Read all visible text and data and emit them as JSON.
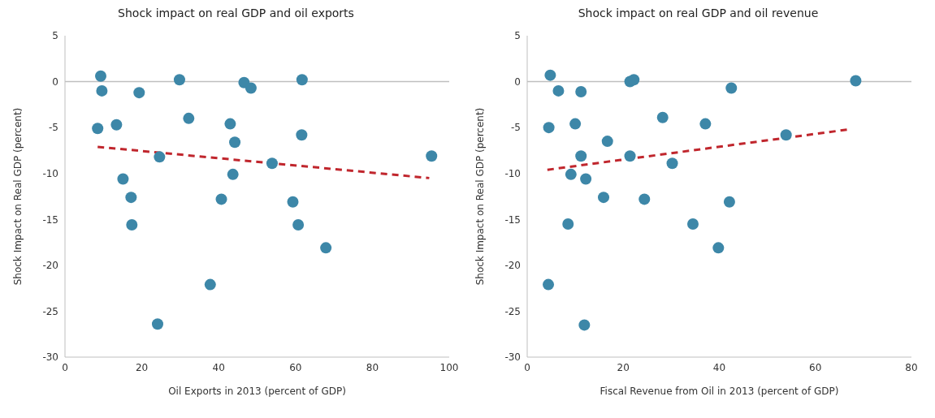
{
  "chart_data": [
    {
      "type": "scatter",
      "title": "Shock impact on real GDP and oil exports",
      "xlabel": "Oil Exports in 2013 (percent of GDP)",
      "ylabel": "Shock Impact on Real GDP (percent)",
      "xlim": [
        0,
        100
      ],
      "xticks": [
        0,
        20,
        40,
        60,
        80,
        100
      ],
      "ylim": [
        -30,
        5
      ],
      "yticks": [
        -30,
        -25,
        -20,
        -15,
        -10,
        -5,
        0,
        5
      ],
      "grid": false,
      "ref_lines": [
        {
          "axis": "y",
          "value": 0,
          "color": "#bfbfbf"
        }
      ],
      "series": [
        {
          "type": "scatter",
          "color": "#3d87a8",
          "marker": "circle",
          "x": [
            9.3,
            9.6,
            8.5,
            13.4,
            19.3,
            15.1,
            17.2,
            17.4,
            24.1,
            24.6,
            29.8,
            32.2,
            37.8,
            40.7,
            43.0,
            44.2,
            43.7,
            46.6,
            48.4,
            53.9,
            59.3,
            61.7,
            61.6,
            60.7,
            67.9,
            95.4
          ],
          "values": [
            0.6,
            -1.0,
            -5.1,
            -4.7,
            -1.2,
            -10.6,
            -12.6,
            -15.6,
            -26.4,
            -8.2,
            0.2,
            -4.0,
            -22.1,
            -12.8,
            -4.6,
            -6.6,
            -10.1,
            -0.1,
            -0.7,
            -8.9,
            -13.1,
            0.2,
            -5.8,
            -15.6,
            -18.1,
            -8.1
          ]
        },
        {
          "type": "line",
          "color": "#c0262d",
          "marker": "none",
          "line_style": "dashed",
          "x": [
            8.5,
            94.8
          ],
          "values": [
            -7.1,
            -10.5
          ]
        }
      ]
    },
    {
      "type": "scatter",
      "title": "Shock impact on real GDP and oil revenue",
      "xlabel": "Fiscal Revenue from Oil in 2013 (percent of GDP)",
      "ylabel": "Shock Impact on Real GDP (percent)",
      "xlim": [
        0,
        80
      ],
      "xticks": [
        0,
        20,
        40,
        60,
        80
      ],
      "ylim": [
        -30,
        5
      ],
      "yticks": [
        -30,
        -25,
        -20,
        -15,
        -10,
        -5,
        0,
        5
      ],
      "grid": false,
      "ref_lines": [
        {
          "axis": "y",
          "value": 0,
          "color": "#bfbfbf"
        }
      ],
      "series": [
        {
          "type": "scatter",
          "color": "#3d87a8",
          "marker": "circle",
          "x": [
            4.8,
            6.5,
            11.2,
            4.5,
            10.0,
            16.7,
            11.2,
            9.1,
            12.2,
            15.9,
            8.5,
            4.4,
            11.9,
            21.4,
            22.2,
            21.4,
            28.2,
            30.2,
            24.4,
            37.1,
            34.5,
            39.8,
            42.1,
            42.5,
            53.9,
            68.4
          ],
          "values": [
            0.7,
            -1.0,
            -1.1,
            -5.0,
            -4.6,
            -6.5,
            -8.1,
            -10.1,
            -10.6,
            -12.6,
            -15.5,
            -22.1,
            -26.5,
            0.0,
            0.2,
            -8.1,
            -3.9,
            -8.9,
            -12.8,
            -4.6,
            -15.5,
            -18.1,
            -13.1,
            -0.7,
            -5.8,
            0.1
          ]
        },
        {
          "type": "line",
          "color": "#c0262d",
          "marker": "none",
          "line_style": "dashed",
          "x": [
            4.2,
            67.0
          ],
          "values": [
            -9.6,
            -5.2
          ]
        }
      ]
    }
  ]
}
